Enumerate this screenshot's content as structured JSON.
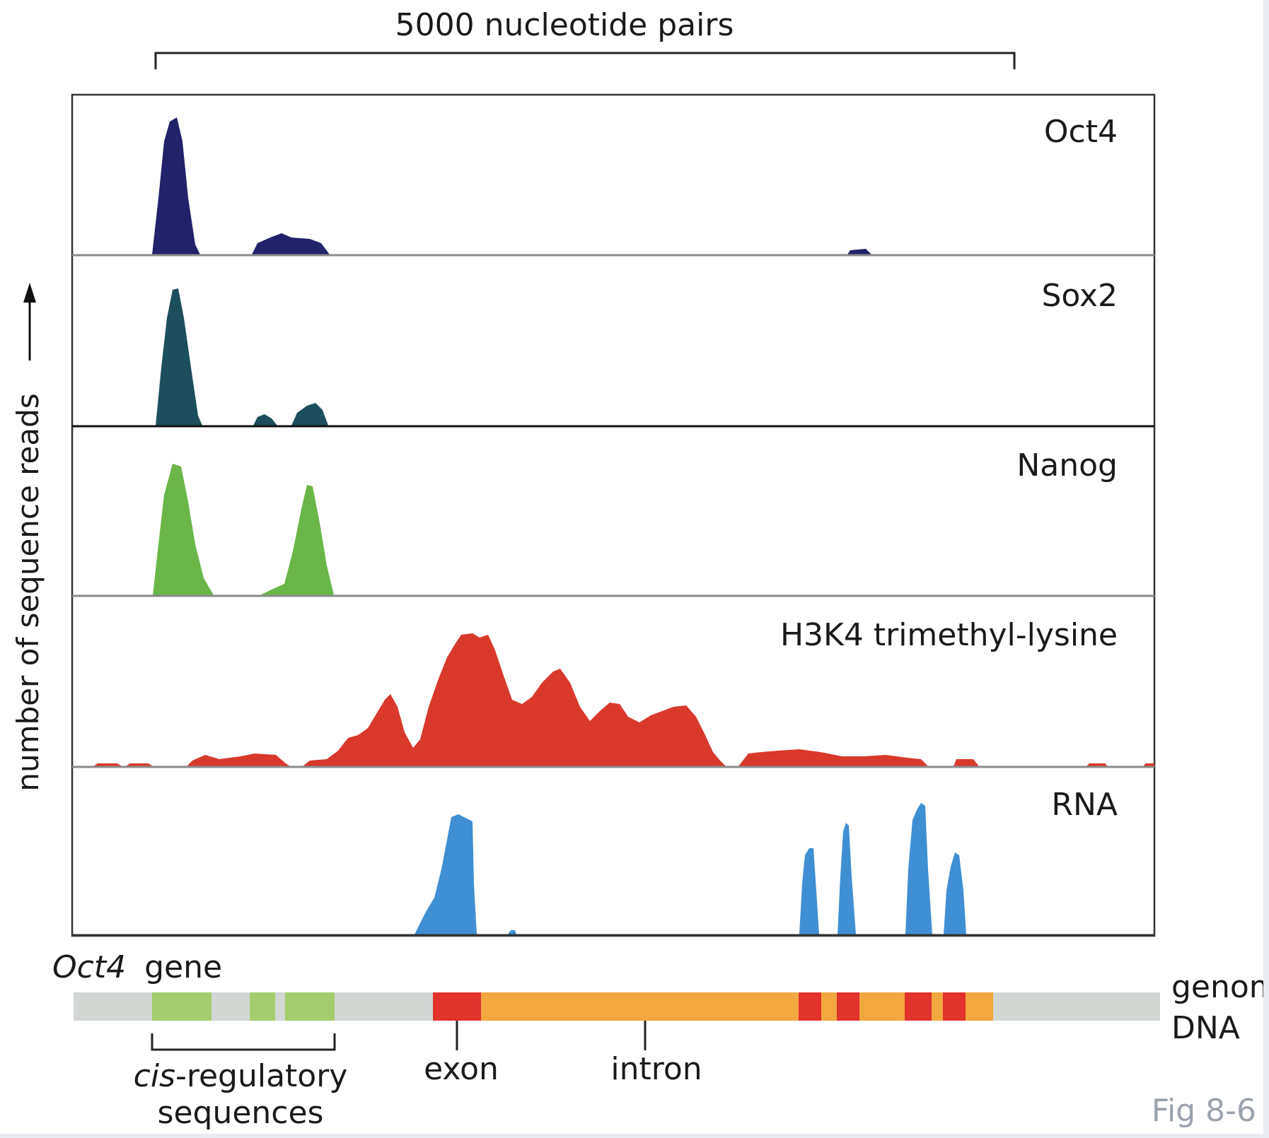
{
  "figure": {
    "scale_label": "5000 nucleotide pairs",
    "y_axis_label": "number of sequence reads",
    "figure_id": "Fig 8-6"
  },
  "colors": {
    "oct4": "#22226b",
    "sox2": "#1d4e5c",
    "nanog": "#6ab648",
    "h3k4": "#d8392b",
    "rna": "#3f8fd2",
    "dna_gray": "#d2d7d4",
    "regulatory_green": "#a4cc6e",
    "exon_red": "#e1322c",
    "intron_orange": "#f2a73f"
  },
  "tracks": [
    {
      "key": "oct4",
      "label": "Oct4"
    },
    {
      "key": "sox2",
      "label": "Sox2"
    },
    {
      "key": "nanog",
      "label": "Nanog"
    },
    {
      "key": "h3k4",
      "label": "H3K4 trimethyl-lysine"
    },
    {
      "key": "rna",
      "label": "RNA"
    }
  ],
  "gene_map": {
    "gene_name": "Oct4",
    "gene_word": "gene",
    "dna_label_line1": "genomic",
    "dna_label_line2": "DNA",
    "cis_italic": "cis",
    "cis_rest": "-regulatory",
    "cis_line2": "sequences",
    "exon_label": "exon",
    "intron_label": "intron"
  }
}
